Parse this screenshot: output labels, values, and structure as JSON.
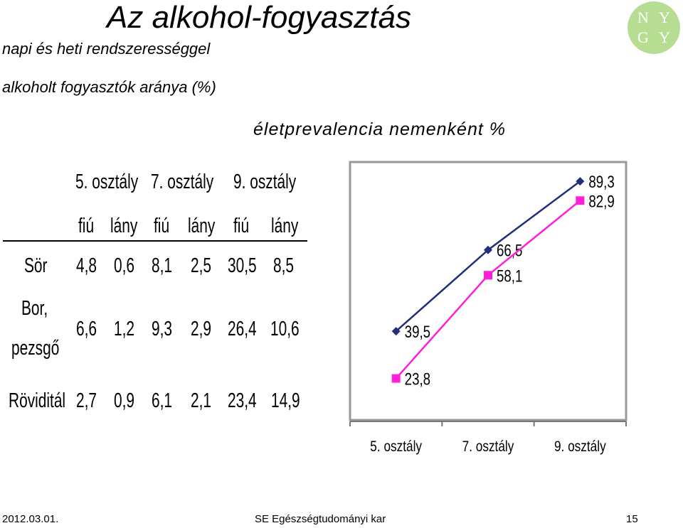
{
  "slide": {
    "title": "Az alkohol-fogyasztás",
    "subtitle1": "napi és heti rendszerességgel",
    "subtitle2": "alkoholt fogyasztók aránya (%)",
    "chart_title": "életprevalencia nemenként %",
    "logo_letters": [
      "N",
      "Y",
      "G",
      "Y"
    ],
    "logo_color": "#b7dd93"
  },
  "table": {
    "groups": [
      "5. osztály",
      "7. osztály",
      "9. osztály"
    ],
    "subheaders": [
      "fiú",
      "lány",
      "fiú",
      "lány",
      "fiú",
      "lány"
    ],
    "rows": [
      {
        "label": "Sör",
        "values": [
          "4,8",
          "0,6",
          "8,1",
          "2,5",
          "30,5",
          "8,5"
        ]
      },
      {
        "label": "Bor,",
        "label2": "pezsgő",
        "values": [
          "6,6",
          "1,2",
          "9,3",
          "2,9",
          "26,4",
          "10,6"
        ]
      },
      {
        "label": "Röviditál",
        "values": [
          "2,7",
          "0,9",
          "6,1",
          "2,1",
          "23,4",
          "14,9"
        ]
      }
    ]
  },
  "chart_data": {
    "type": "line",
    "categories": [
      "5. osztály",
      "7. osztály",
      "9. osztály"
    ],
    "series": [
      {
        "values": [
          39.5,
          66.5,
          89.3
        ],
        "labels": [
          "39,5",
          "66,5",
          "89,3"
        ],
        "color": "#1f2f7a",
        "marker": "diamond"
      },
      {
        "values": [
          23.8,
          58.1,
          82.9
        ],
        "labels": [
          "23,8",
          "58,1",
          "82,9"
        ],
        "color": "#ff1fd8",
        "marker": "square"
      }
    ],
    "ylim": [
      0,
      100
    ],
    "grid": false
  },
  "footer": {
    "date": "2012.03.01.",
    "center": "SE Egészségtudományi kar",
    "page": "15"
  }
}
